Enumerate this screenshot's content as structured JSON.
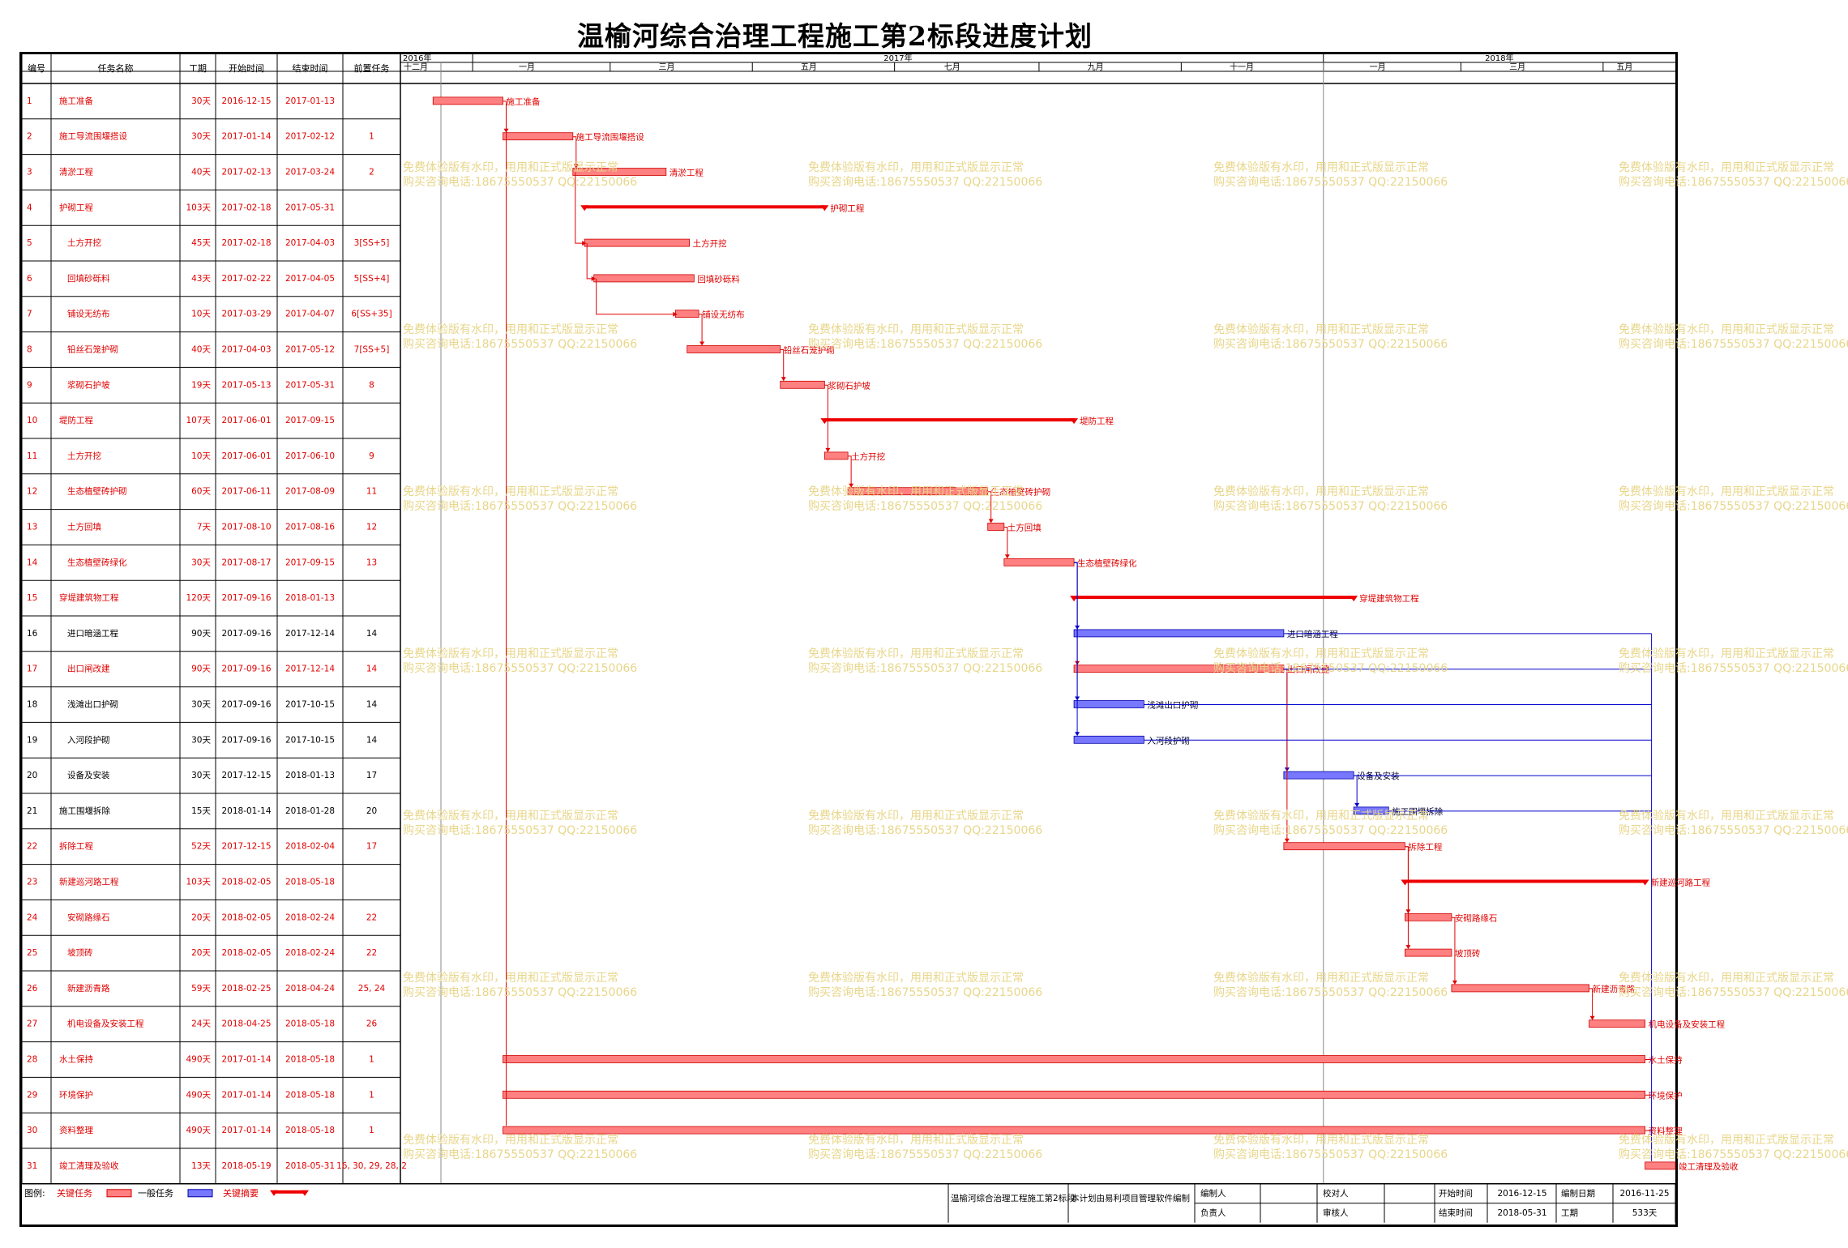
{
  "title": "温榆河综合治理工程施工第2标段进度计划",
  "colors": {
    "critical": "#ff8080",
    "critical_text": "#e00000",
    "normal": "#7878ff",
    "normal_line": "#0000cc",
    "summary": "#ee0000",
    "watermark": "#e8d68a"
  },
  "columns": [
    "编号",
    "任务名称",
    "工期",
    "开始时间",
    "结束时间",
    "前置任务"
  ],
  "timescale": {
    "years": [
      {
        "label": "2016年",
        "start": "2016-12-01"
      },
      {
        "label": "2017年",
        "start": "2017-01-01"
      },
      {
        "label": "2018年",
        "start": "2018-01-01"
      }
    ],
    "months": [
      {
        "label": "十二月",
        "start": "2016-12-01"
      },
      {
        "label": "一月",
        "start": "2017-01-01"
      },
      {
        "label": "三月",
        "start": "2017-03-01"
      },
      {
        "label": "五月",
        "start": "2017-05-01"
      },
      {
        "label": "七月",
        "start": "2017-07-01"
      },
      {
        "label": "九月",
        "start": "2017-09-01"
      },
      {
        "label": "十一月",
        "start": "2017-11-01"
      },
      {
        "label": "一月",
        "start": "2018-01-01"
      },
      {
        "label": "三月",
        "start": "2018-03-01"
      },
      {
        "label": "五月",
        "start": "2018-05-01"
      }
    ]
  },
  "chart_data": {
    "type": "gantt",
    "tasks": [
      {
        "id": "1",
        "name": "施工准备",
        "duration": "30天",
        "start": "2016-12-15",
        "end": "2017-01-13",
        "pred": "",
        "kind": "critical",
        "indent": 0
      },
      {
        "id": "2",
        "name": "施工导流围堰搭设",
        "duration": "30天",
        "start": "2017-01-14",
        "end": "2017-02-12",
        "pred": "1",
        "kind": "critical",
        "indent": 0
      },
      {
        "id": "3",
        "name": "清淤工程",
        "duration": "40天",
        "start": "2017-02-13",
        "end": "2017-03-24",
        "pred": "2",
        "kind": "critical",
        "indent": 0
      },
      {
        "id": "4",
        "name": "护砌工程",
        "duration": "103天",
        "start": "2017-02-18",
        "end": "2017-05-31",
        "pred": "",
        "kind": "summary",
        "indent": 0
      },
      {
        "id": "5",
        "name": "土方开挖",
        "duration": "45天",
        "start": "2017-02-18",
        "end": "2017-04-03",
        "pred": "3[SS+5]",
        "kind": "critical",
        "indent": 1
      },
      {
        "id": "6",
        "name": "回填砂砾料",
        "duration": "43天",
        "start": "2017-02-22",
        "end": "2017-04-05",
        "pred": "5[SS+4]",
        "kind": "critical",
        "indent": 1
      },
      {
        "id": "7",
        "name": "铺设无纺布",
        "duration": "10天",
        "start": "2017-03-29",
        "end": "2017-04-07",
        "pred": "6[SS+35]",
        "kind": "critical",
        "indent": 1
      },
      {
        "id": "8",
        "name": "铅丝石笼护砌",
        "duration": "40天",
        "start": "2017-04-03",
        "end": "2017-05-12",
        "pred": "7[SS+5]",
        "kind": "critical",
        "indent": 1
      },
      {
        "id": "9",
        "name": "浆砌石护坡",
        "duration": "19天",
        "start": "2017-05-13",
        "end": "2017-05-31",
        "pred": "8",
        "kind": "critical",
        "indent": 1
      },
      {
        "id": "10",
        "name": "堤防工程",
        "duration": "107天",
        "start": "2017-06-01",
        "end": "2017-09-15",
        "pred": "",
        "kind": "summary",
        "indent": 0
      },
      {
        "id": "11",
        "name": "土方开挖",
        "duration": "10天",
        "start": "2017-06-01",
        "end": "2017-06-10",
        "pred": "9",
        "kind": "critical",
        "indent": 1
      },
      {
        "id": "12",
        "name": "生态植壁砖护砌",
        "duration": "60天",
        "start": "2017-06-11",
        "end": "2017-08-09",
        "pred": "11",
        "kind": "critical",
        "indent": 1
      },
      {
        "id": "13",
        "name": "土方回填",
        "duration": "7天",
        "start": "2017-08-10",
        "end": "2017-08-16",
        "pred": "12",
        "kind": "critical",
        "indent": 1
      },
      {
        "id": "14",
        "name": "生态植壁砖绿化",
        "duration": "30天",
        "start": "2017-08-17",
        "end": "2017-09-15",
        "pred": "13",
        "kind": "critical",
        "indent": 1
      },
      {
        "id": "15",
        "name": "穿堤建筑物工程",
        "duration": "120天",
        "start": "2017-09-16",
        "end": "2018-01-13",
        "pred": "",
        "kind": "summary",
        "indent": 0
      },
      {
        "id": "16",
        "name": "进口暗涵工程",
        "duration": "90天",
        "start": "2017-09-16",
        "end": "2017-12-14",
        "pred": "14",
        "kind": "normal",
        "indent": 1
      },
      {
        "id": "17",
        "name": "出口闸改建",
        "duration": "90天",
        "start": "2017-09-16",
        "end": "2017-12-14",
        "pred": "14",
        "kind": "critical",
        "indent": 1
      },
      {
        "id": "18",
        "name": "浅滩出口护砌",
        "duration": "30天",
        "start": "2017-09-16",
        "end": "2017-10-15",
        "pred": "14",
        "kind": "normal",
        "indent": 1
      },
      {
        "id": "19",
        "name": "入河段护砌",
        "duration": "30天",
        "start": "2017-09-16",
        "end": "2017-10-15",
        "pred": "14",
        "kind": "normal",
        "indent": 1
      },
      {
        "id": "20",
        "name": "设备及安装",
        "duration": "30天",
        "start": "2017-12-15",
        "end": "2018-01-13",
        "pred": "17",
        "kind": "normal",
        "indent": 1
      },
      {
        "id": "21",
        "name": "施工围堰拆除",
        "duration": "15天",
        "start": "2018-01-14",
        "end": "2018-01-28",
        "pred": "20",
        "kind": "normal",
        "indent": 0
      },
      {
        "id": "22",
        "name": "拆除工程",
        "duration": "52天",
        "start": "2017-12-15",
        "end": "2018-02-04",
        "pred": "17",
        "kind": "critical",
        "indent": 0
      },
      {
        "id": "23",
        "name": "新建巡河路工程",
        "duration": "103天",
        "start": "2018-02-05",
        "end": "2018-05-18",
        "pred": "",
        "kind": "summary",
        "indent": 0
      },
      {
        "id": "24",
        "name": "安砌路缘石",
        "duration": "20天",
        "start": "2018-02-05",
        "end": "2018-02-24",
        "pred": "22",
        "kind": "critical",
        "indent": 1
      },
      {
        "id": "25",
        "name": "坡顶砖",
        "duration": "20天",
        "start": "2018-02-05",
        "end": "2018-02-24",
        "pred": "22",
        "kind": "critical",
        "indent": 1
      },
      {
        "id": "26",
        "name": "新建沥青路",
        "duration": "59天",
        "start": "2018-02-25",
        "end": "2018-04-24",
        "pred": "25, 24",
        "kind": "critical",
        "indent": 1
      },
      {
        "id": "27",
        "name": "机电设备及安装工程",
        "duration": "24天",
        "start": "2018-04-25",
        "end": "2018-05-18",
        "pred": "26",
        "kind": "critical",
        "indent": 1
      },
      {
        "id": "28",
        "name": "水土保持",
        "duration": "490天",
        "start": "2017-01-14",
        "end": "2018-05-18",
        "pred": "1",
        "kind": "critical",
        "indent": 0
      },
      {
        "id": "29",
        "name": "环境保护",
        "duration": "490天",
        "start": "2017-01-14",
        "end": "2018-05-18",
        "pred": "1",
        "kind": "critical",
        "indent": 0
      },
      {
        "id": "30",
        "name": "资料整理",
        "duration": "490天",
        "start": "2017-01-14",
        "end": "2018-05-18",
        "pred": "1",
        "kind": "critical",
        "indent": 0
      },
      {
        "id": "31",
        "name": "竣工清理及验收",
        "duration": "13天",
        "start": "2018-05-19",
        "end": "2018-05-31",
        "pred": "16, 30, 29, 28, 2",
        "kind": "critical",
        "indent": 0
      }
    ]
  },
  "legend": {
    "label": "图例:",
    "items": [
      {
        "label": "关键任务",
        "kind": "critical"
      },
      {
        "label": "一般任务",
        "kind": "normal"
      },
      {
        "label": "关键摘要",
        "kind": "summary"
      }
    ]
  },
  "footer": {
    "project": "温榆河综合治理工程施工第2标段",
    "software": "本计划由易利项目管理软件编制",
    "editor_label": "编制人",
    "reviewer_label": "校对人",
    "manager_label": "负责人",
    "approver_label": "审核人",
    "start_label": "开始时间",
    "start_value": "2016-12-15",
    "end_label": "结束时间",
    "end_value": "2018-05-31",
    "date_label": "编制日期",
    "date_value": "2016-11-25",
    "duration_label": "工期",
    "duration_value": "533天"
  },
  "watermark": {
    "line1": "免费体验版有水印，用用和正式版显示正常",
    "line2": "购买咨询电话:18675550537 QQ:22150066"
  }
}
